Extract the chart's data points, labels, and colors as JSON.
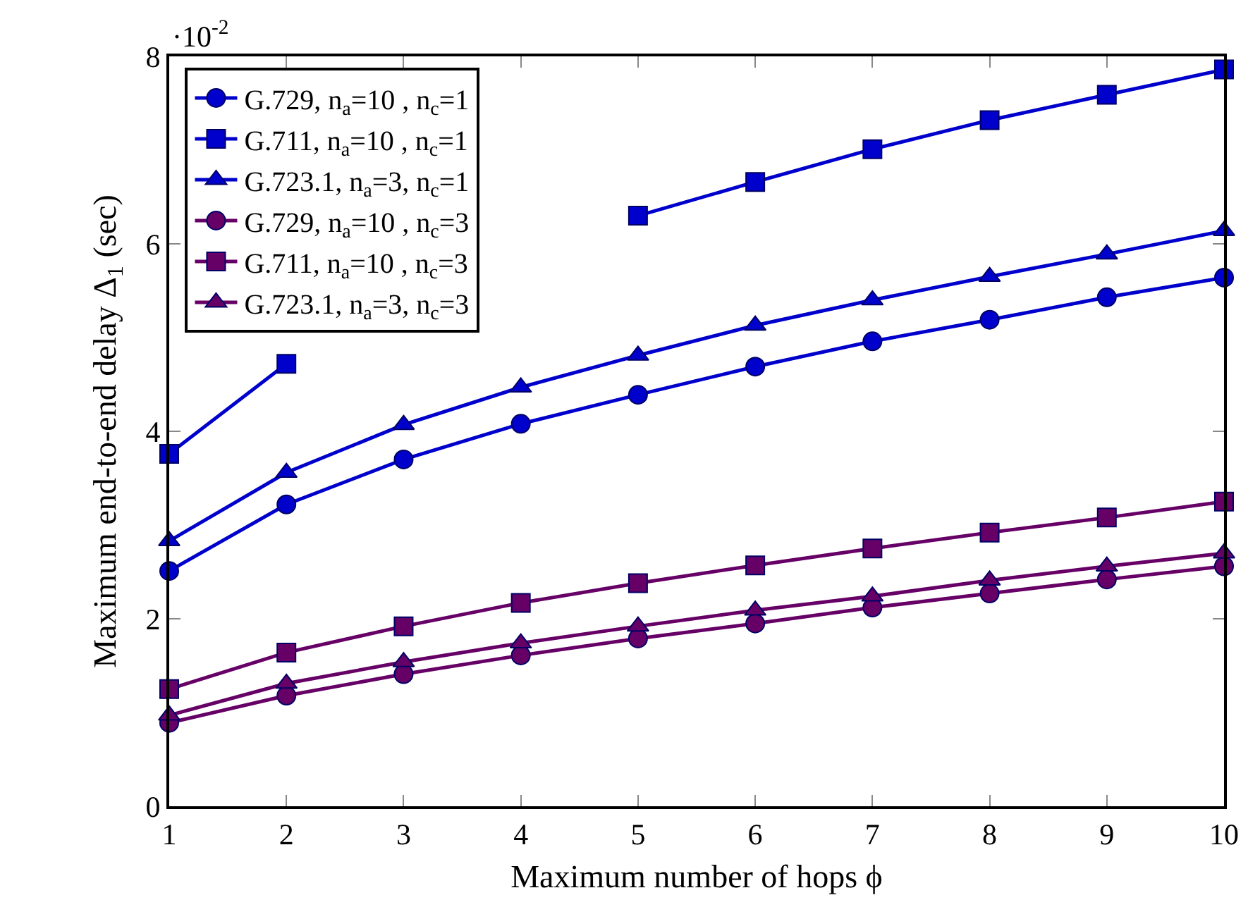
{
  "chart_data": {
    "type": "line",
    "xlabel": "Maximum number of hops ϕ",
    "ylabel": "Maximum end-to-end delay Δ$_{1}$ (sec)",
    "annotations": [
      "·10$^{-2}$"
    ],
    "x": [
      1,
      2,
      3,
      4,
      5,
      6,
      7,
      8,
      9,
      10
    ],
    "series": [
      {
        "name": "G.729, n$_{a}$=10 , n$_{c}$=1",
        "color": "#0000cc",
        "marker": "circle",
        "values": [
          2.51,
          3.22,
          3.7,
          4.08,
          4.39,
          4.69,
          4.96,
          5.19,
          5.43,
          5.64
        ]
      },
      {
        "name": "G.711, n$_{a}$=10 , n$_{c}$=1",
        "color": "#0000cc",
        "marker": "square",
        "values": [
          3.76,
          4.72,
          null,
          null,
          6.3,
          6.66,
          7.01,
          7.32,
          7.59,
          7.86
        ]
      },
      {
        "name": "G.723.1, n$_{a}$=3, n$_{c}$=1",
        "color": "#0000cc",
        "marker": "triangle",
        "values": [
          2.83,
          3.56,
          4.07,
          4.47,
          4.81,
          5.13,
          5.4,
          5.65,
          5.89,
          6.14
        ]
      },
      {
        "name": "G.729, n$_{a}$=10 , n$_{c}$=3",
        "color": "#660066",
        "marker": "circle",
        "values": [
          0.89,
          1.18,
          1.41,
          1.61,
          1.79,
          1.95,
          2.12,
          2.27,
          2.42,
          2.56
        ]
      },
      {
        "name": "G.711, n$_{a}$=10 , n$_{c}$=3",
        "color": "#660066",
        "marker": "square",
        "values": [
          1.25,
          1.64,
          1.92,
          2.17,
          2.38,
          2.57,
          2.75,
          2.92,
          3.08,
          3.25
        ]
      },
      {
        "name": "G.723.1, n$_{a}$=3, n$_{c}$=3",
        "color": "#660066",
        "marker": "triangle",
        "values": [
          0.97,
          1.31,
          1.54,
          1.74,
          1.92,
          2.09,
          2.24,
          2.41,
          2.56,
          2.7
        ]
      }
    ],
    "xlim": [
      1,
      10
    ],
    "xticks": [
      1,
      2,
      3,
      4,
      5,
      6,
      7,
      8,
      9,
      10
    ],
    "ylim": [
      0,
      8
    ],
    "yticks": [
      0,
      2,
      4,
      6,
      8
    ],
    "grid": false,
    "legend": "top left",
    "line_style": "solid"
  }
}
